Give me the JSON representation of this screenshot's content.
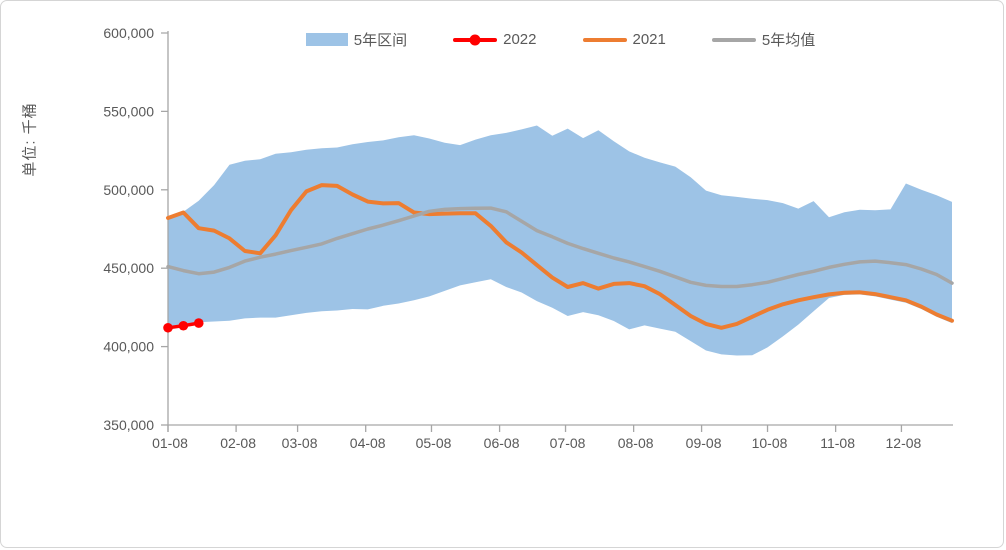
{
  "y_axis": {
    "title": "单位: 千桶",
    "tick_labels": [
      "600,000",
      "550,000",
      "500,000",
      "450,000",
      "400,000",
      "350,000"
    ],
    "min": 350000,
    "max": 600000,
    "step": 50000
  },
  "x_axis": {
    "tick_labels": [
      "01-08",
      "02-08",
      "03-08",
      "04-08",
      "05-08",
      "06-08",
      "07-08",
      "08-08",
      "09-08",
      "10-08",
      "11-08",
      "12-08"
    ],
    "tick_week_positions": [
      0,
      4.43,
      8.43,
      12.86,
      17.14,
      21.57,
      25.86,
      30.29,
      34.71,
      39.0,
      43.43,
      47.71
    ]
  },
  "legend": {
    "items": [
      {
        "label": "5年区间",
        "type": "band",
        "color": "#9DC3E6"
      },
      {
        "label": "2022",
        "type": "line-dot",
        "color": "#FF0000"
      },
      {
        "label": "2021",
        "type": "line",
        "color": "#ED7D31"
      },
      {
        "label": "5年均值",
        "type": "line",
        "color": "#A6A6A6"
      }
    ]
  },
  "chart_data": {
    "type": "area",
    "title": "",
    "xlabel": "",
    "ylabel": "单位: 千桶",
    "ylim": [
      350000,
      600000
    ],
    "grid": false,
    "legend_position": "top-center",
    "n_points": 52,
    "x_unit": "week-of-year",
    "band": {
      "name": "5年区间",
      "fill_color": "#9DC3E6",
      "upper": [
        483000,
        486000,
        493000,
        503000,
        516000,
        518500,
        519500,
        523000,
        524000,
        525500,
        526500,
        527000,
        529000,
        530500,
        531500,
        533500,
        534800,
        532700,
        530000,
        528500,
        532000,
        534800,
        536300,
        538500,
        541000,
        534500,
        539000,
        533000,
        538000,
        531000,
        524500,
        520500,
        517500,
        514800,
        508000,
        499500,
        496500,
        495500,
        494300,
        493400,
        491500,
        488000,
        492800,
        482500,
        485700,
        487300,
        487000,
        487500,
        504000,
        500000,
        496500,
        492300
      ],
      "lower": [
        410000,
        414500,
        415500,
        416000,
        416500,
        418000,
        418500,
        418500,
        420000,
        421500,
        422500,
        423000,
        424000,
        423700,
        426000,
        427500,
        429500,
        432000,
        435500,
        439000,
        441000,
        443000,
        438000,
        434500,
        429000,
        424800,
        419500,
        422000,
        420000,
        416300,
        411000,
        413500,
        411500,
        409500,
        403500,
        397500,
        395000,
        394300,
        394500,
        399500,
        406500,
        414000,
        422500,
        431000,
        433000,
        433200,
        432000,
        430000,
        428000,
        424000,
        419000,
        415000
      ]
    },
    "series": [
      {
        "name": "2022",
        "color": "#FF0000",
        "style": "line-with-markers",
        "values": [
          412000,
          413300,
          415000
        ]
      },
      {
        "name": "2021",
        "color": "#ED7D31",
        "style": "line",
        "values": [
          482000,
          485500,
          475500,
          474000,
          469000,
          461000,
          459500,
          471000,
          487000,
          499000,
          503000,
          502500,
          497000,
          492500,
          491300,
          491500,
          485500,
          484500,
          484800,
          485000,
          485000,
          477000,
          466500,
          460000,
          452000,
          444000,
          438000,
          440500,
          437000,
          440000,
          440500,
          438500,
          433500,
          426500,
          419500,
          414500,
          412000,
          414500,
          419000,
          423500,
          427000,
          429500,
          431500,
          433300,
          434400,
          434600,
          433500,
          431500,
          429500,
          425500,
          420500,
          416500
        ]
      },
      {
        "name": "5年均值",
        "color": "#A6A6A6",
        "style": "line",
        "values": [
          451000,
          448500,
          446500,
          447500,
          450500,
          454500,
          457000,
          459000,
          461200,
          463300,
          465500,
          469000,
          472000,
          475000,
          477500,
          480300,
          483300,
          486300,
          487500,
          488000,
          488200,
          488300,
          486000,
          480000,
          474000,
          470000,
          465800,
          462500,
          459500,
          456500,
          454000,
          451000,
          448000,
          444500,
          441000,
          439000,
          438300,
          438300,
          439500,
          441000,
          443500,
          446000,
          448000,
          450500,
          452500,
          454000,
          454500,
          453500,
          452300,
          449500,
          446000,
          440500
        ]
      }
    ]
  }
}
